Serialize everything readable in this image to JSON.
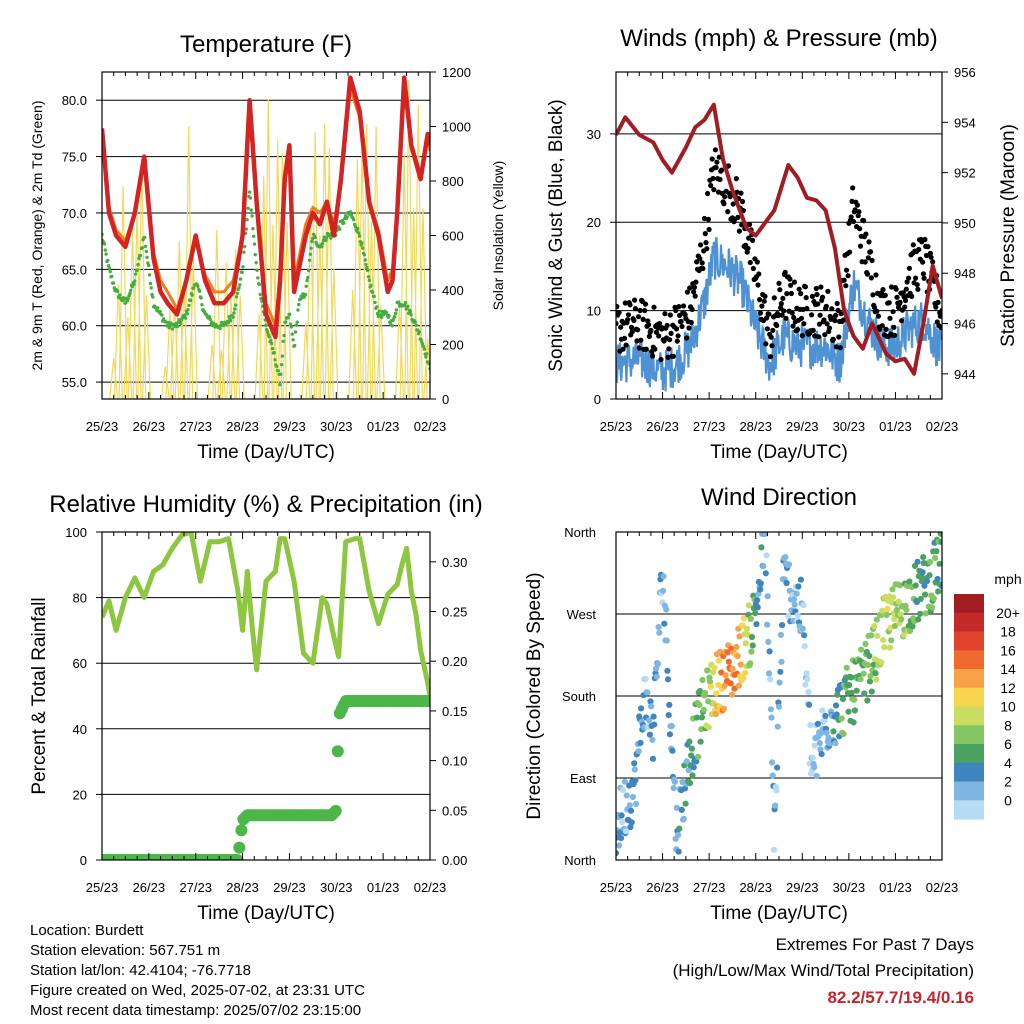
{
  "chart_data": [
    {
      "id": "temperature",
      "type": "line",
      "title": "Temperature (F)",
      "xlabel": "Time (Day/UTC)",
      "ylabel": "2m & 9m T (Red, Orange) & 2m Td (Green)",
      "y2label": "Solar Insolation (Yellow)",
      "x_ticks": [
        "25/23",
        "26/23",
        "27/23",
        "28/23",
        "29/23",
        "30/23",
        "01/23",
        "02/23"
      ],
      "ylim": [
        53.5,
        82.5
      ],
      "yticks": [
        "55.0",
        "60.0",
        "65.0",
        "70.0",
        "75.0",
        "80.0"
      ],
      "y2lim": [
        0,
        1200
      ],
      "y2ticks": [
        "0",
        "200",
        "400",
        "600",
        "800",
        "1000",
        "1200"
      ],
      "grid": "horizontal",
      "series": [
        {
          "name": "2m T",
          "color": "#d42323",
          "x": [
            0,
            0.15,
            0.3,
            0.5,
            0.7,
            0.9,
            1.1,
            1.25,
            1.4,
            1.6,
            1.8,
            2.0,
            2.2,
            2.4,
            2.6,
            2.8,
            3.0,
            3.15,
            3.3,
            3.5,
            3.7,
            3.8,
            3.9,
            4.0,
            4.1,
            4.2,
            4.35,
            4.5,
            4.65,
            4.8,
            4.95,
            5.1,
            5.3,
            5.5,
            5.7,
            5.9,
            6.1,
            6.2,
            6.3,
            6.45,
            6.6,
            6.8,
            6.95,
            7.0
          ],
          "values": [
            77.5,
            70,
            68,
            67,
            70,
            75,
            66,
            63,
            62,
            61,
            64,
            68,
            64,
            62,
            62,
            63,
            68,
            80,
            71,
            61,
            59,
            64,
            73,
            76,
            63,
            65,
            68,
            70,
            69,
            71,
            68,
            73,
            82,
            79,
            71,
            68,
            63,
            64,
            70,
            82,
            76,
            73,
            77,
            76
          ]
        },
        {
          "name": "9m T",
          "color": "#f07f20",
          "x": [
            0,
            0.15,
            0.3,
            0.5,
            0.7,
            0.9,
            1.1,
            1.25,
            1.4,
            1.6,
            1.8,
            2.0,
            2.2,
            2.4,
            2.6,
            2.8,
            3.0,
            3.15,
            3.3,
            3.5,
            3.7,
            3.8,
            3.9,
            4.0,
            4.1,
            4.2,
            4.35,
            4.5,
            4.65,
            4.8,
            4.95,
            5.1,
            5.3,
            5.5,
            5.7,
            5.9,
            6.1,
            6.2,
            6.3,
            6.45,
            6.6,
            6.8,
            6.95,
            7.0
          ],
          "values": [
            77,
            70.5,
            68.5,
            67.5,
            70,
            74.5,
            66.5,
            64,
            63,
            61.5,
            64,
            67.5,
            64.5,
            63,
            63,
            64,
            68,
            79,
            71,
            62,
            60,
            64.5,
            72.5,
            75.5,
            64,
            66,
            69,
            70.5,
            70,
            71,
            69,
            72.5,
            81,
            78.5,
            71,
            68.5,
            64,
            65,
            70,
            81,
            76,
            73.5,
            76.5,
            75.5
          ]
        },
        {
          "name": "2m Td",
          "color": "#46ad3f",
          "x": [
            0,
            0.15,
            0.3,
            0.5,
            0.7,
            0.9,
            1.1,
            1.25,
            1.4,
            1.6,
            1.8,
            2.0,
            2.2,
            2.4,
            2.6,
            2.8,
            3.0,
            3.15,
            3.3,
            3.5,
            3.7,
            3.8,
            3.9,
            4.0,
            4.1,
            4.2,
            4.35,
            4.5,
            4.65,
            4.8,
            4.95,
            5.1,
            5.3,
            5.5,
            5.7,
            5.9,
            6.1,
            6.2,
            6.3,
            6.45,
            6.6,
            6.8,
            6.95,
            7.0
          ],
          "values": [
            68,
            65,
            63,
            62,
            64,
            68,
            62,
            61,
            60,
            60,
            61,
            64,
            61,
            60,
            60,
            61,
            65,
            72,
            65,
            60,
            57,
            55,
            60,
            61,
            58,
            62,
            63,
            68,
            67,
            68,
            68,
            69,
            70,
            68,
            64,
            61,
            61,
            60,
            62,
            62,
            61,
            59,
            57,
            56
          ]
        },
        {
          "name": "Solar Insolation",
          "color": "#f1d95b",
          "axis": "y2",
          "x": [
            0.1,
            0.25,
            0.35,
            0.45,
            0.55,
            0.65,
            0.75,
            0.85,
            0.95,
            1.1,
            1.25,
            1.35,
            1.45,
            1.55,
            1.65,
            1.75,
            1.85,
            1.95,
            2.1,
            2.25,
            2.35,
            2.45,
            2.55,
            2.65,
            2.75,
            2.85,
            2.95,
            3.1,
            3.25,
            3.35,
            3.45,
            3.55,
            3.65,
            3.75,
            3.85,
            3.95,
            4.1,
            4.25,
            4.35,
            4.45,
            4.55,
            4.65,
            4.75,
            4.85,
            4.95,
            5.1,
            5.25,
            5.35,
            5.45,
            5.55,
            5.65,
            5.75,
            5.85,
            5.95,
            6.1,
            6.25,
            6.35,
            6.45,
            6.55,
            6.65,
            6.75,
            6.85,
            6.95
          ],
          "values": [
            0,
            150,
            420,
            780,
            300,
            620,
            700,
            880,
            380,
            0,
            0,
            120,
            330,
            360,
            580,
            420,
            1000,
            520,
            0,
            0,
            200,
            620,
            180,
            500,
            380,
            550,
            380,
            0,
            0,
            310,
            820,
            1100,
            640,
            950,
            900,
            650,
            0,
            0,
            280,
            700,
            980,
            600,
            1010,
            920,
            480,
            0,
            0,
            400,
            880,
            950,
            1010,
            650,
            1000,
            340,
            0,
            0,
            350,
            900,
            1170,
            700,
            1080,
            700,
            220
          ]
        }
      ]
    },
    {
      "id": "winds",
      "type": "scatter",
      "title": "Winds (mph) & Pressure (mb)",
      "xlabel": "Time (Day/UTC)",
      "ylabel": "Sonic Wind & Gust (Blue, Black)",
      "y2label": "Station Pressure (Maroon)",
      "x_ticks": [
        "25/23",
        "26/23",
        "27/23",
        "28/23",
        "29/23",
        "30/23",
        "01/23",
        "02/23"
      ],
      "ylim": [
        0,
        37
      ],
      "yticks": [
        "0",
        "10",
        "20",
        "30"
      ],
      "y2lim": [
        943,
        956
      ],
      "y2ticks": [
        "944",
        "946",
        "948",
        "950",
        "952",
        "954",
        "956"
      ],
      "grid": "horizontal",
      "series": [
        {
          "name": "Sonic Wind",
          "color": "#4f92d3",
          "x": [
            0,
            0.5,
            1.0,
            1.3,
            1.6,
            1.9,
            2.1,
            2.4,
            2.7,
            3.0,
            3.3,
            3.6,
            3.9,
            4.2,
            4.5,
            4.8,
            5.1,
            5.4,
            5.7,
            6.0,
            6.3,
            6.6,
            6.9,
            7.0
          ],
          "values": [
            4,
            4.5,
            3,
            4,
            6,
            11,
            16,
            15,
            13,
            8,
            4,
            7,
            6,
            6,
            6,
            4,
            13,
            9,
            6,
            6,
            8,
            9,
            6,
            5
          ]
        },
        {
          "name": "Gust",
          "color": "#000000",
          "x": [
            0,
            0.5,
            1.0,
            1.3,
            1.6,
            1.9,
            2.1,
            2.4,
            2.7,
            3.0,
            3.3,
            3.6,
            3.9,
            4.2,
            4.5,
            4.8,
            5.1,
            5.4,
            5.7,
            6.0,
            6.3,
            6.6,
            6.9,
            7.0
          ],
          "values": [
            8,
            8.5,
            7,
            8,
            10,
            18,
            26,
            24,
            21,
            14,
            7,
            12,
            10,
            10,
            10,
            8,
            22,
            16,
            10,
            10,
            14,
            16,
            11,
            9
          ]
        },
        {
          "name": "Station Pressure",
          "color": "#a01e23",
          "axis": "y2",
          "x": [
            0,
            0.2,
            0.5,
            0.8,
            1.0,
            1.2,
            1.5,
            1.7,
            1.9,
            2.1,
            2.3,
            2.5,
            2.8,
            3.0,
            3.2,
            3.4,
            3.7,
            3.9,
            4.1,
            4.3,
            4.5,
            4.7,
            4.9,
            5.1,
            5.3,
            5.5,
            5.8,
            6.0,
            6.2,
            6.4,
            6.6,
            6.8,
            7.0
          ],
          "values": [
            953.5,
            954.2,
            953.5,
            953.2,
            952.5,
            952.0,
            953.0,
            953.8,
            954.1,
            954.7,
            952.5,
            951.3,
            949.8,
            949.5,
            950.0,
            950.5,
            952.3,
            951.8,
            951.0,
            950.9,
            950.5,
            949.0,
            946.5,
            945.5,
            945.0,
            946.0,
            944.8,
            944.5,
            944.6,
            944.0,
            946.0,
            948.3,
            947.0
          ]
        }
      ]
    },
    {
      "id": "humidity",
      "type": "line",
      "title": "Relative Humidity (%) & Precipitation (in)",
      "xlabel": "Time (Day/UTC)",
      "ylabel": "Percent & Total Rainfall",
      "x_ticks": [
        "25/23",
        "26/23",
        "27/23",
        "28/23",
        "29/23",
        "30/23",
        "01/23",
        "02/23"
      ],
      "ylim": [
        0,
        100
      ],
      "yticks": [
        "0",
        "20",
        "40",
        "60",
        "80",
        "100"
      ],
      "y2lim": [
        0,
        0.33
      ],
      "y2ticks": [
        "0.00",
        "0.05",
        "0.10",
        "0.15",
        "0.20",
        "0.25",
        "0.30"
      ],
      "grid": "horizontal",
      "series": [
        {
          "name": "Relative Humidity",
          "color": "#8dc63f",
          "x": [
            0,
            0.15,
            0.3,
            0.5,
            0.7,
            0.9,
            1.1,
            1.3,
            1.5,
            1.7,
            1.9,
            2.1,
            2.3,
            2.5,
            2.7,
            2.9,
            3.0,
            3.1,
            3.2,
            3.3,
            3.5,
            3.7,
            3.8,
            3.9,
            4.1,
            4.3,
            4.5,
            4.7,
            4.8,
            4.95,
            5.05,
            5.2,
            5.4,
            5.5,
            5.7,
            5.9,
            6.1,
            6.3,
            6.4,
            6.5,
            6.6,
            6.7,
            6.8,
            6.95,
            7.0
          ],
          "values": [
            74,
            79,
            70,
            80,
            86,
            80,
            88,
            90,
            95,
            99,
            100,
            85,
            97,
            97,
            98,
            82,
            70,
            88,
            72,
            58,
            85,
            88,
            98,
            98,
            85,
            63,
            60,
            80,
            78,
            68,
            62,
            97,
            98,
            98,
            82,
            72,
            81,
            84,
            90,
            95,
            82,
            75,
            64,
            54,
            50
          ]
        },
        {
          "name": "Total Precipitation",
          "color": "#4cb748",
          "axis": "y2",
          "x": [
            0,
            0.5,
            1.0,
            1.5,
            2.0,
            2.5,
            2.9,
            3.0,
            3.1,
            3.3,
            3.6,
            4.0,
            4.5,
            4.9,
            5.0,
            5.05,
            5.2,
            5.6,
            6.0,
            6.5,
            7.0
          ],
          "values": [
            0.0,
            0.0,
            0.0,
            0.0,
            0.0,
            0.0,
            0.0,
            0.04,
            0.045,
            0.045,
            0.045,
            0.045,
            0.045,
            0.045,
            0.05,
            0.145,
            0.16,
            0.16,
            0.16,
            0.16,
            0.16
          ]
        }
      ]
    },
    {
      "id": "wind_direction",
      "type": "scatter",
      "title": "Wind Direction",
      "xlabel": "Time (Day/UTC)",
      "ylabel": "Direction (Colored By Speed)",
      "x_ticks": [
        "25/23",
        "26/23",
        "27/23",
        "28/23",
        "29/23",
        "30/23",
        "01/23",
        "02/23"
      ],
      "ylim": [
        0,
        360
      ],
      "yticks": [
        "North",
        "East",
        "South",
        "West",
        "North"
      ],
      "grid": "horizontal",
      "colorbar": {
        "title": "mph",
        "labels": [
          "20+",
          "18",
          "16",
          "14",
          "12",
          "10",
          "8",
          "6",
          "4",
          "2",
          "0"
        ],
        "colors": [
          "#a21d21",
          "#c42a27",
          "#e0432b",
          "#ef6a2e",
          "#f7a148",
          "#f6d650",
          "#c9dd61",
          "#84c664",
          "#4ba260",
          "#3f86c0",
          "#7fb6e2",
          "#b7dbf4"
        ]
      },
      "series": [
        {
          "name": "Direction",
          "x": [
            0,
            0.2,
            0.4,
            0.6,
            0.8,
            1.0,
            1.3,
            1.6,
            1.9,
            2.1,
            2.3,
            2.5,
            2.7,
            2.9,
            3.05,
            3.2,
            3.4,
            3.6,
            3.8,
            4.0,
            4.2,
            4.5,
            4.8,
            5.0,
            5.2,
            5.4,
            5.6,
            5.8,
            6.0,
            6.2,
            6.4,
            6.6,
            6.8,
            7.0
          ],
          "values": [
            35,
            60,
            80,
            180,
            140,
            320,
            30,
            120,
            170,
            190,
            200,
            210,
            230,
            250,
            290,
            360,
            30,
            310,
            290,
            270,
            100,
            150,
            165,
            180,
            190,
            210,
            230,
            260,
            270,
            280,
            290,
            300,
            310,
            330
          ],
          "speeds": [
            4,
            3,
            4,
            3,
            4,
            3,
            4,
            6,
            8,
            12,
            16,
            16,
            14,
            8,
            6,
            3,
            3,
            4,
            3,
            3,
            2,
            3,
            6,
            8,
            8,
            8,
            10,
            11,
            10,
            9,
            7,
            6,
            8,
            6
          ]
        }
      ]
    }
  ],
  "footer": {
    "location": "Location: Burdett",
    "elevation": "Station elevation: 567.751 m",
    "latlon": "Station lat/lon: 42.4104; -76.7718",
    "created": "Figure created on Wed, 2025-07-02, at 23:31 UTC",
    "timestamp": "Most recent data timestamp: 2025/07/02 23:15:00"
  },
  "extremes": {
    "title": "Extremes For Past 7 Days",
    "subtitle": "(High/Low/Max Wind/Total Precipitation)",
    "values": "82.2/57.7/19.4/0.16"
  }
}
